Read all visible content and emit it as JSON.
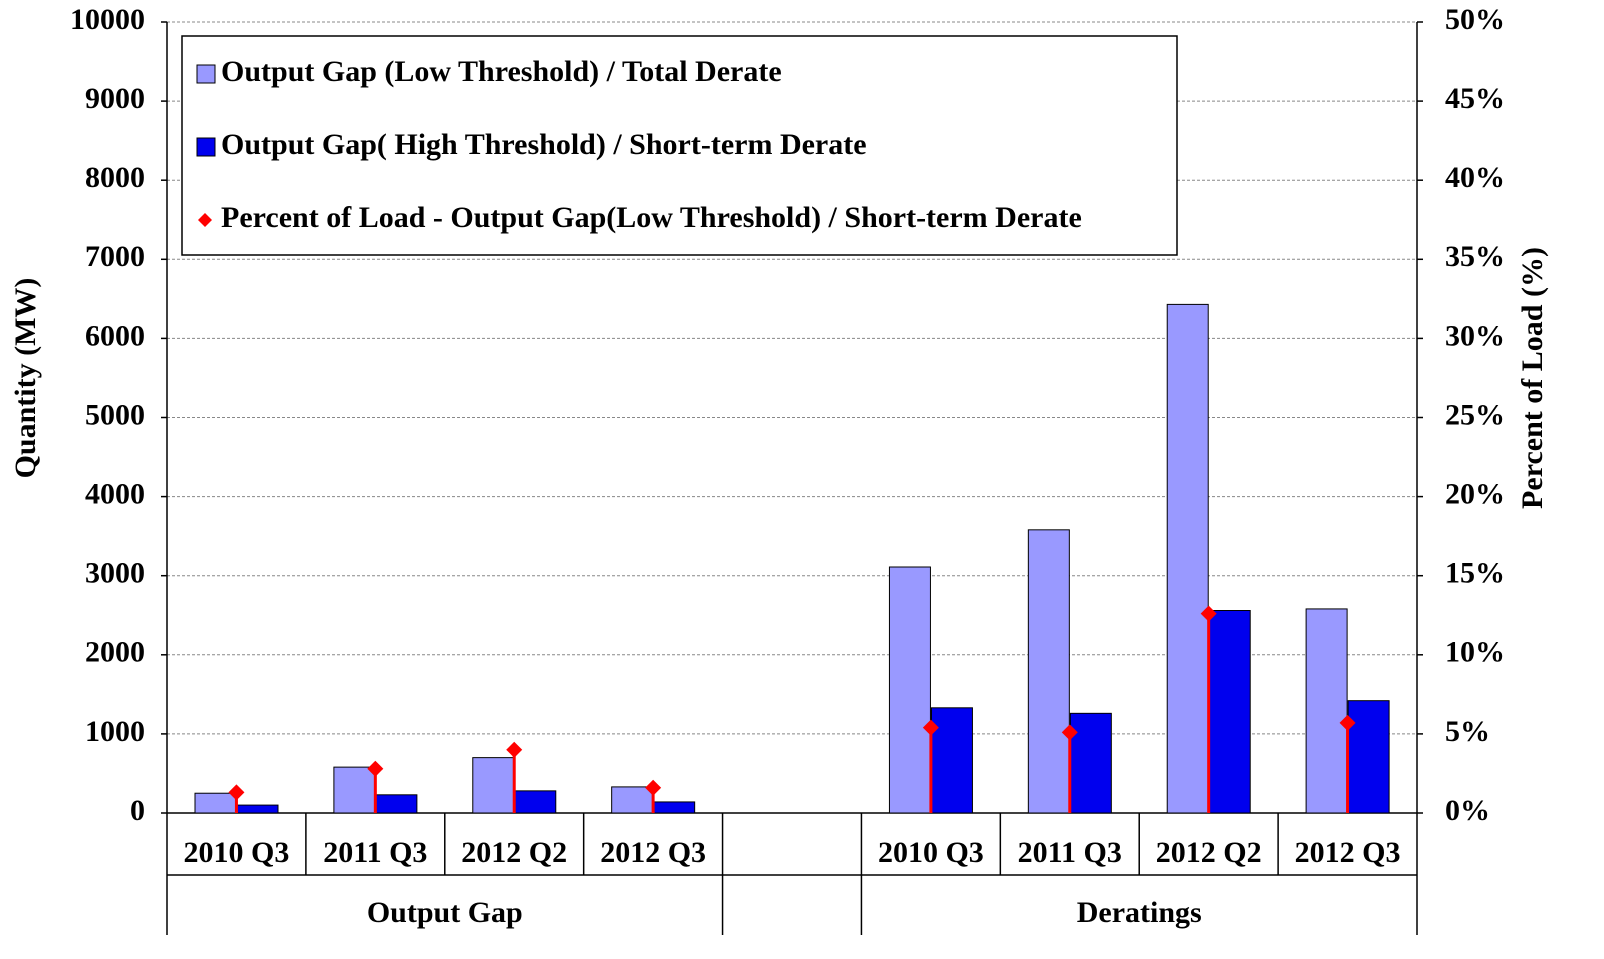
{
  "chart_data": {
    "type": "bar",
    "y_label": "Quantity (MW)",
    "y2_label": "Percent of Load (%)",
    "categories": [
      "2010 Q3",
      "2011 Q3",
      "2012 Q2",
      "2012 Q3",
      null,
      "2010 Q3",
      "2011 Q3",
      "2012 Q2",
      "2012 Q3"
    ],
    "groups": [
      "Output Gap",
      "Deratings"
    ],
    "series": [
      {
        "name": "Output Gap (Low Threshold) / Total Derate",
        "color": "#9999ff",
        "values": [
          250,
          580,
          700,
          330,
          null,
          3110,
          3580,
          6430,
          2580
        ]
      },
      {
        "name": "Output Gap( High Threshold) / Short-term Derate",
        "color": "#0000ee",
        "values": [
          100,
          230,
          280,
          140,
          null,
          1330,
          1260,
          2560,
          1420
        ]
      },
      {
        "name": "Percent of Load - Output Gap(Low Threshold) / Short-term Derate",
        "color": "#ff0000",
        "axis": "y2",
        "values": [
          1.3,
          2.8,
          4.0,
          1.6,
          null,
          5.4,
          5.1,
          12.6,
          5.7
        ]
      }
    ],
    "ylim": [
      0,
      10000
    ],
    "yticks": [
      0,
      1000,
      2000,
      3000,
      4000,
      5000,
      6000,
      7000,
      8000,
      9000,
      10000
    ],
    "y2lim": [
      0,
      50
    ],
    "y2ticks": [
      {
        "value": 0,
        "label": "0%"
      },
      {
        "value": 5,
        "label": "5%"
      },
      {
        "value": 10,
        "label": "10%"
      },
      {
        "value": 15,
        "label": "15%"
      },
      {
        "value": 20,
        "label": "20%"
      },
      {
        "value": 25,
        "label": "25%"
      },
      {
        "value": 30,
        "label": "30%"
      },
      {
        "value": 35,
        "label": "35%"
      },
      {
        "value": 40,
        "label": "40%"
      },
      {
        "value": 45,
        "label": "45%"
      },
      {
        "value": 50,
        "label": "50%"
      }
    ],
    "grid": true,
    "legend": "top-left"
  }
}
